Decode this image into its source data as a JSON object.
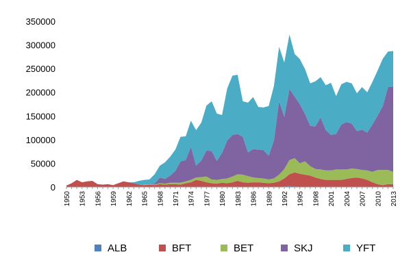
{
  "chart_data": {
    "type": "area",
    "stacked": true,
    "ylim": [
      0,
      350000
    ],
    "yticks": [
      0,
      50000,
      100000,
      150000,
      200000,
      250000,
      300000,
      350000
    ],
    "ytick_labels": [
      "0",
      "50000",
      "100000",
      "150000",
      "200000",
      "250000",
      "300000",
      "350000"
    ],
    "xtick_labels": [
      "1950",
      "1953",
      "1956",
      "1959",
      "1962",
      "1965",
      "1968",
      "1971",
      "1974",
      "1977",
      "1980",
      "1983",
      "1986",
      "1989",
      "1992",
      "1995",
      "1998",
      "2001",
      "2004",
      "2007",
      "2010",
      "2013"
    ],
    "grid": false,
    "legend_position": "bottom",
    "x": [
      1950,
      1951,
      1952,
      1953,
      1954,
      1955,
      1956,
      1957,
      1958,
      1959,
      1960,
      1961,
      1962,
      1963,
      1964,
      1965,
      1966,
      1967,
      1968,
      1969,
      1970,
      1971,
      1972,
      1973,
      1974,
      1975,
      1976,
      1977,
      1978,
      1979,
      1980,
      1981,
      1982,
      1983,
      1984,
      1985,
      1986,
      1987,
      1988,
      1989,
      1990,
      1991,
      1992,
      1993,
      1994,
      1995,
      1996,
      1997,
      1998,
      1999,
      2000,
      2001,
      2002,
      2003,
      2004,
      2005,
      2006,
      2007,
      2008,
      2009,
      2010,
      2011,
      2012,
      2013
    ],
    "series": [
      {
        "name": "ALB",
        "color": "#4F81BD",
        "values": [
          0,
          0,
          0,
          0,
          0,
          0,
          0,
          0,
          0,
          0,
          0,
          0,
          0,
          0,
          0,
          0,
          0,
          0,
          0,
          0,
          0,
          0,
          0,
          0,
          0,
          0,
          0,
          0,
          0,
          0,
          0,
          0,
          0,
          0,
          0,
          0,
          0,
          0,
          0,
          0,
          0,
          0,
          1000,
          2000,
          1000,
          0,
          0,
          0,
          0,
          0,
          0,
          0,
          0,
          0,
          0,
          0,
          0,
          0,
          0,
          0,
          0,
          0,
          0,
          0
        ]
      },
      {
        "name": "BFT",
        "color": "#C0504D",
        "values": [
          3000,
          8000,
          15000,
          10000,
          12000,
          13000,
          6000,
          5000,
          6000,
          4000,
          8000,
          12000,
          10000,
          8000,
          5000,
          4000,
          5000,
          4000,
          6000,
          5000,
          6000,
          6000,
          5000,
          8000,
          10000,
          15000,
          13000,
          10000,
          8000,
          7000,
          9000,
          8000,
          10000,
          13000,
          10000,
          9000,
          10000,
          10000,
          9000,
          8000,
          9000,
          12000,
          17000,
          25000,
          30000,
          28000,
          26000,
          24000,
          20000,
          17000,
          15000,
          15000,
          15000,
          15000,
          17000,
          19000,
          20000,
          18000,
          15000,
          10000,
          6000,
          4000,
          6000,
          6000
        ]
      },
      {
        "name": "BET",
        "color": "#9BBB59",
        "values": [
          0,
          0,
          0,
          0,
          0,
          0,
          0,
          0,
          0,
          0,
          0,
          0,
          0,
          0,
          0,
          1000,
          1000,
          1000,
          2000,
          2000,
          3000,
          3000,
          4000,
          4000,
          5000,
          5000,
          8000,
          12000,
          8000,
          8000,
          8000,
          10000,
          12000,
          14000,
          16000,
          14000,
          10000,
          9000,
          9000,
          8000,
          9000,
          14000,
          20000,
          30000,
          30000,
          22000,
          28000,
          20000,
          18000,
          20000,
          20000,
          20000,
          22000,
          22000,
          20000,
          20000,
          18000,
          18000,
          20000,
          22000,
          30000,
          32000,
          30000,
          26000
        ]
      },
      {
        "name": "SKJ",
        "color": "#8064A2",
        "values": [
          0,
          0,
          0,
          0,
          0,
          0,
          0,
          0,
          0,
          0,
          0,
          0,
          0,
          0,
          0,
          0,
          0,
          2000,
          12000,
          10000,
          15000,
          25000,
          45000,
          45000,
          70000,
          25000,
          35000,
          55000,
          60000,
          40000,
          55000,
          80000,
          88000,
          85000,
          80000,
          50000,
          60000,
          60000,
          60000,
          50000,
          80000,
          155000,
          110000,
          150000,
          130000,
          125000,
          100000,
          85000,
          90000,
          110000,
          85000,
          75000,
          75000,
          95000,
          100000,
          95000,
          80000,
          85000,
          80000,
          100000,
          115000,
          135000,
          175000,
          180000
        ]
      },
      {
        "name": "YFT",
        "color": "#4BACC6",
        "values": [
          0,
          0,
          0,
          0,
          0,
          0,
          0,
          0,
          0,
          0,
          0,
          0,
          0,
          2000,
          8000,
          10000,
          10000,
          20000,
          25000,
          35000,
          40000,
          45000,
          52000,
          50000,
          55000,
          75000,
          80000,
          95000,
          105000,
          100000,
          80000,
          110000,
          125000,
          125000,
          75000,
          105000,
          110000,
          90000,
          90000,
          105000,
          115000,
          115000,
          115000,
          115000,
          90000,
          95000,
          95000,
          90000,
          95000,
          85000,
          95000,
          110000,
          80000,
          85000,
          85000,
          85000,
          80000,
          90000,
          85000,
          90000,
          95000,
          100000,
          75000,
          75000
        ]
      }
    ]
  }
}
